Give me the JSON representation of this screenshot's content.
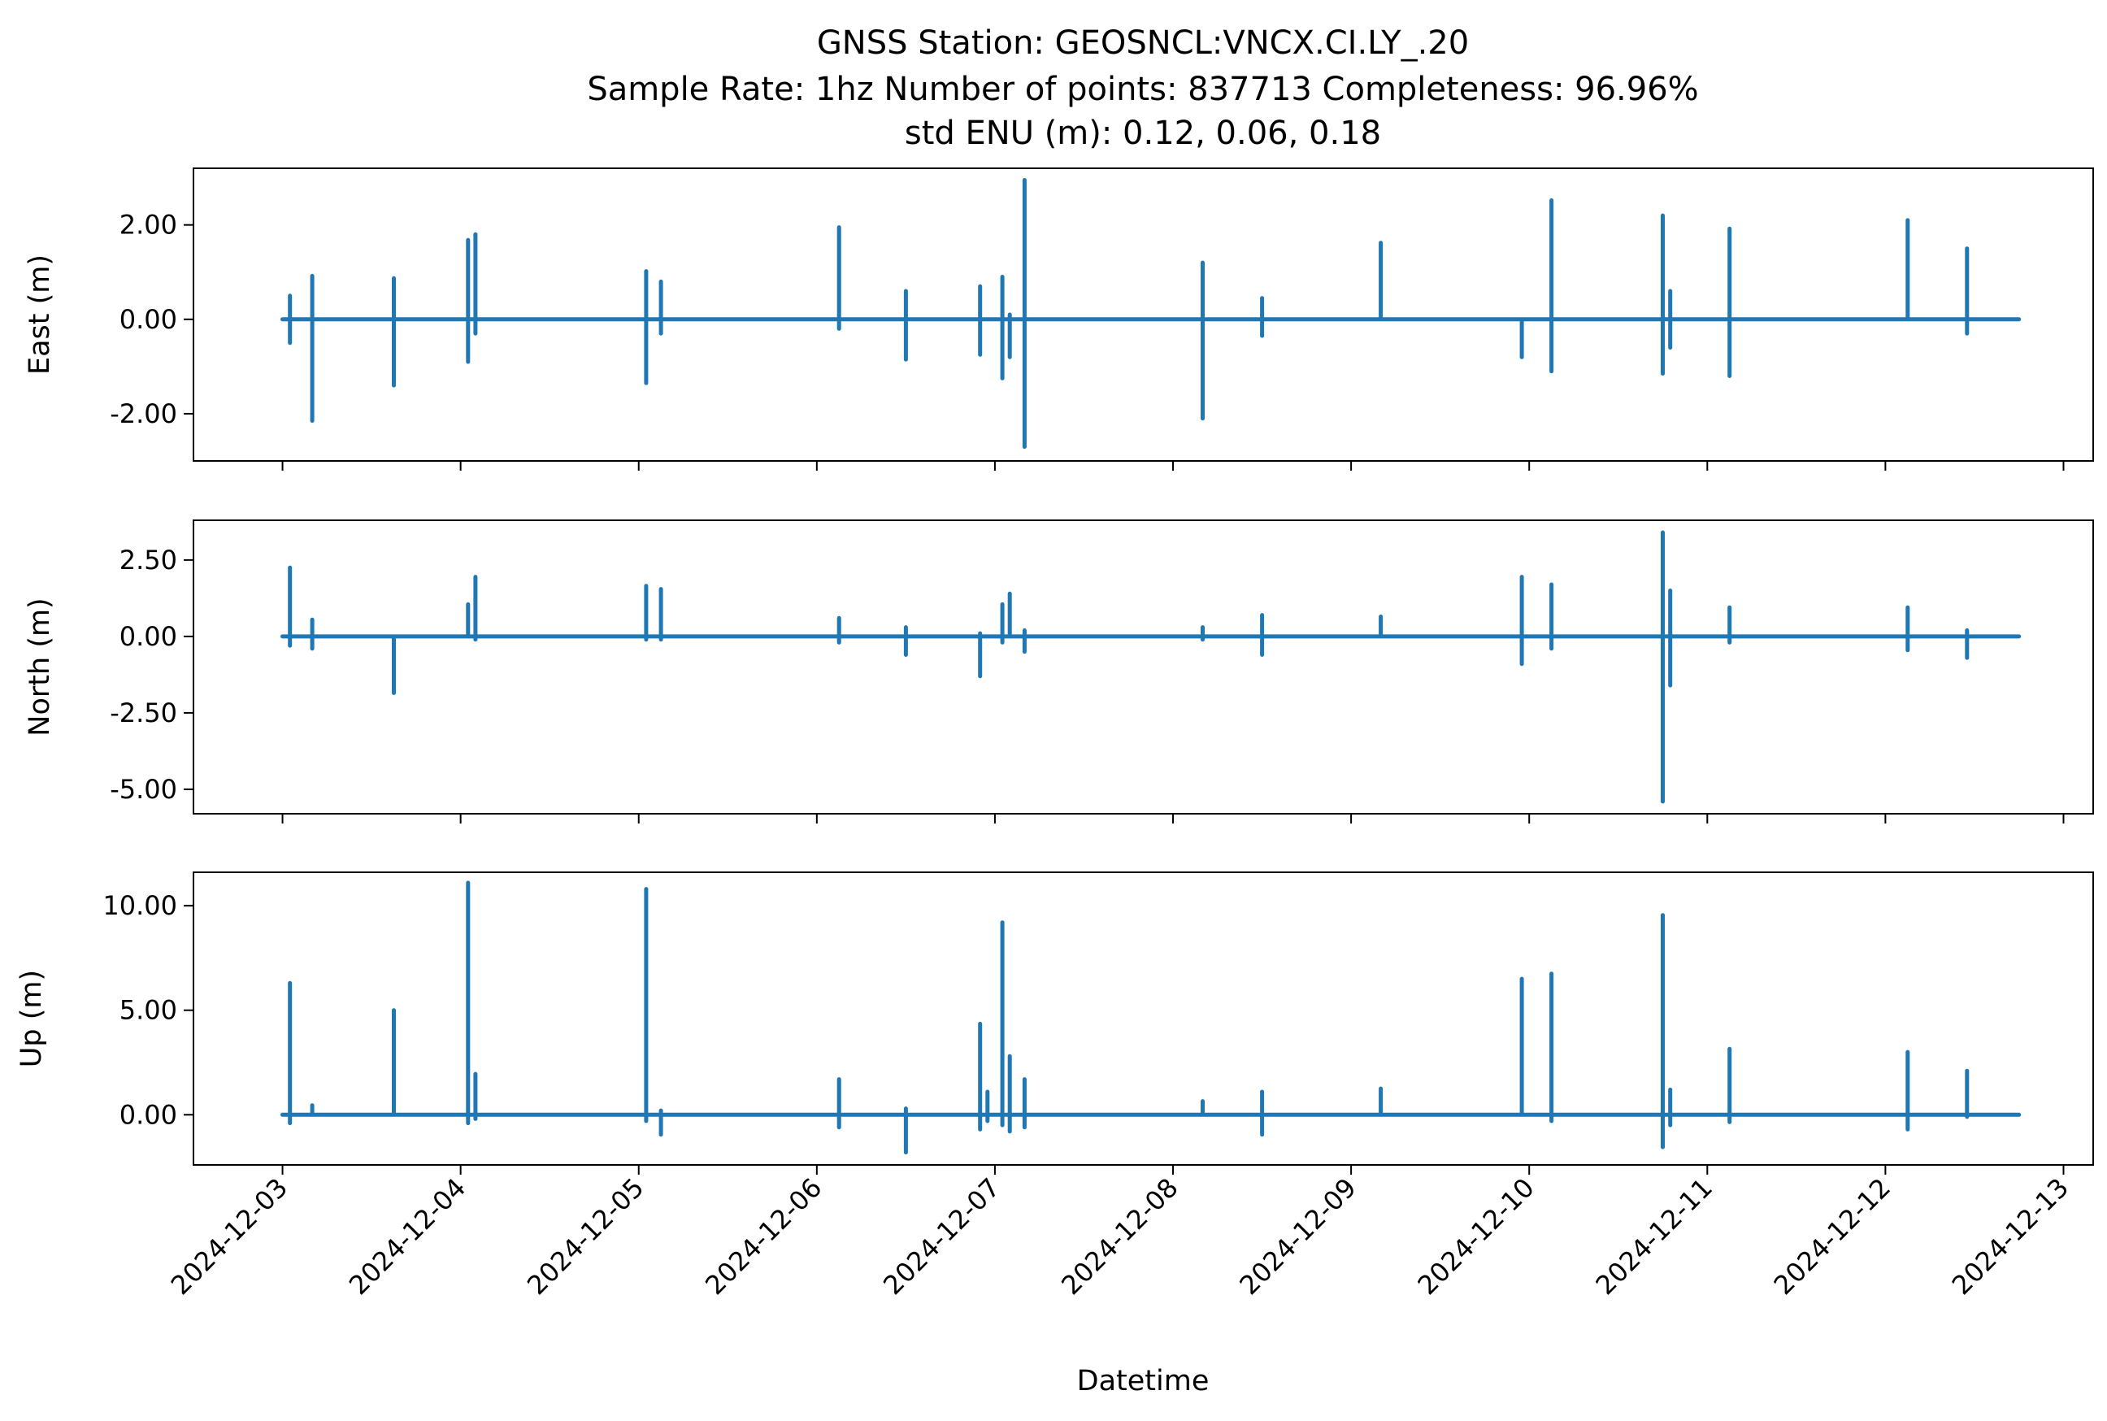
{
  "chart_data": {
    "type": "line",
    "title_lines": [
      "GNSS Station: GEOSNCL:VNCX.CI.LY_.20",
      "Sample Rate: 1hz   Number of points: 837713    Completeness:  96.96%",
      "std ENU (m):  0.12, 0.06, 0.18"
    ],
    "xlabel": "Datetime",
    "x_ticks": [
      "2024-12-03",
      "2024-12-04",
      "2024-12-05",
      "2024-12-06",
      "2024-12-07",
      "2024-12-08",
      "2024-12-09",
      "2024-12-10",
      "2024-12-11",
      "2024-12-12",
      "2024-12-13"
    ],
    "x_range": [
      "2024-12-02 12:00",
      "2024-12-13 04:00"
    ],
    "color": "#1f77b4",
    "panels": [
      {
        "ylabel": "East (m)",
        "ylim": [
          -3.0,
          3.2
        ],
        "y_ticks": [
          2.0,
          0.0,
          -2.0
        ],
        "y_tick_labels": [
          "2.00",
          "0.00",
          "-2.00"
        ],
        "spikes": [
          {
            "t": "2024-12-03 01:00",
            "lo": -0.5,
            "hi": 0.5
          },
          {
            "t": "2024-12-03 04:00",
            "lo": -2.15,
            "hi": 0.92
          },
          {
            "t": "2024-12-03 15:00",
            "lo": -1.4,
            "hi": 0.87
          },
          {
            "t": "2024-12-04 01:00",
            "lo": -0.9,
            "hi": 1.68
          },
          {
            "t": "2024-12-04 02:00",
            "lo": -0.3,
            "hi": 1.8
          },
          {
            "t": "2024-12-05 01:00",
            "lo": -1.35,
            "hi": 1.02
          },
          {
            "t": "2024-12-05 03:00",
            "lo": -0.3,
            "hi": 0.8
          },
          {
            "t": "2024-12-06 03:00",
            "lo": -0.2,
            "hi": 1.95
          },
          {
            "t": "2024-12-06 12:00",
            "lo": -0.85,
            "hi": 0.6
          },
          {
            "t": "2024-12-06 22:00",
            "lo": -0.75,
            "hi": 0.7
          },
          {
            "t": "2024-12-07 01:00",
            "lo": -1.25,
            "hi": 0.9
          },
          {
            "t": "2024-12-07 02:00",
            "lo": -0.8,
            "hi": 0.1
          },
          {
            "t": "2024-12-07 04:00",
            "lo": -2.7,
            "hi": 2.95
          },
          {
            "t": "2024-12-08 04:00",
            "lo": -2.1,
            "hi": 1.2
          },
          {
            "t": "2024-12-08 12:00",
            "lo": -0.35,
            "hi": 0.45
          },
          {
            "t": "2024-12-09 04:00",
            "lo": 0.0,
            "hi": 1.62
          },
          {
            "t": "2024-12-09 23:00",
            "lo": -0.8,
            "hi": 0.0
          },
          {
            "t": "2024-12-10 03:00",
            "lo": -1.1,
            "hi": 2.52
          },
          {
            "t": "2024-12-10 18:00",
            "lo": -1.15,
            "hi": 2.2
          },
          {
            "t": "2024-12-10 19:00",
            "lo": -0.6,
            "hi": 0.6
          },
          {
            "t": "2024-12-11 03:00",
            "lo": -1.2,
            "hi": 1.92
          },
          {
            "t": "2024-12-12 03:00",
            "lo": 0.0,
            "hi": 2.1
          },
          {
            "t": "2024-12-12 11:00",
            "lo": -0.3,
            "hi": 1.5
          }
        ]
      },
      {
        "ylabel": "North (m)",
        "ylim": [
          -5.8,
          3.8
        ],
        "y_ticks": [
          2.5,
          0.0,
          -2.5,
          -5.0
        ],
        "y_tick_labels": [
          "2.50",
          "0.00",
          "-2.50",
          "-5.00"
        ],
        "spikes": [
          {
            "t": "2024-12-03 01:00",
            "lo": -0.3,
            "hi": 2.25
          },
          {
            "t": "2024-12-03 04:00",
            "lo": -0.4,
            "hi": 0.55
          },
          {
            "t": "2024-12-03 15:00",
            "lo": -1.85,
            "hi": 0.0
          },
          {
            "t": "2024-12-04 01:00",
            "lo": 0.0,
            "hi": 1.05
          },
          {
            "t": "2024-12-04 02:00",
            "lo": -0.1,
            "hi": 1.95
          },
          {
            "t": "2024-12-05 01:00",
            "lo": -0.1,
            "hi": 1.65
          },
          {
            "t": "2024-12-05 03:00",
            "lo": -0.1,
            "hi": 1.55
          },
          {
            "t": "2024-12-06 03:00",
            "lo": -0.2,
            "hi": 0.6
          },
          {
            "t": "2024-12-06 12:00",
            "lo": -0.6,
            "hi": 0.3
          },
          {
            "t": "2024-12-06 22:00",
            "lo": -1.3,
            "hi": 0.1
          },
          {
            "t": "2024-12-07 01:00",
            "lo": -0.2,
            "hi": 1.05
          },
          {
            "t": "2024-12-07 02:00",
            "lo": 0.0,
            "hi": 1.4
          },
          {
            "t": "2024-12-07 04:00",
            "lo": -0.5,
            "hi": 0.2
          },
          {
            "t": "2024-12-08 04:00",
            "lo": -0.1,
            "hi": 0.3
          },
          {
            "t": "2024-12-08 12:00",
            "lo": -0.6,
            "hi": 0.7
          },
          {
            "t": "2024-12-09 04:00",
            "lo": 0.0,
            "hi": 0.65
          },
          {
            "t": "2024-12-09 23:00",
            "lo": -0.9,
            "hi": 1.95
          },
          {
            "t": "2024-12-10 03:00",
            "lo": -0.4,
            "hi": 1.7
          },
          {
            "t": "2024-12-10 18:00",
            "lo": -5.4,
            "hi": 3.4
          },
          {
            "t": "2024-12-10 19:00",
            "lo": -1.6,
            "hi": 1.5
          },
          {
            "t": "2024-12-11 03:00",
            "lo": -0.2,
            "hi": 0.95
          },
          {
            "t": "2024-12-12 03:00",
            "lo": -0.45,
            "hi": 0.95
          },
          {
            "t": "2024-12-12 11:00",
            "lo": -0.7,
            "hi": 0.2
          }
        ]
      },
      {
        "ylabel": "Up (m)",
        "ylim": [
          -2.4,
          11.6
        ],
        "y_ticks": [
          10.0,
          5.0,
          0.0
        ],
        "y_tick_labels": [
          "10.00",
          "5.00",
          "0.00"
        ],
        "spikes": [
          {
            "t": "2024-12-03 01:00",
            "lo": -0.4,
            "hi": 6.3
          },
          {
            "t": "2024-12-03 04:00",
            "lo": 0.0,
            "hi": 0.45
          },
          {
            "t": "2024-12-03 15:00",
            "lo": 0.0,
            "hi": 5.0
          },
          {
            "t": "2024-12-04 01:00",
            "lo": -0.4,
            "hi": 11.1
          },
          {
            "t": "2024-12-04 02:00",
            "lo": -0.2,
            "hi": 1.95
          },
          {
            "t": "2024-12-05 01:00",
            "lo": -0.3,
            "hi": 10.8
          },
          {
            "t": "2024-12-05 03:00",
            "lo": -0.95,
            "hi": 0.2
          },
          {
            "t": "2024-12-06 03:00",
            "lo": -0.6,
            "hi": 1.7
          },
          {
            "t": "2024-12-06 12:00",
            "lo": -1.8,
            "hi": 0.3
          },
          {
            "t": "2024-12-06 22:00",
            "lo": -0.7,
            "hi": 4.35
          },
          {
            "t": "2024-12-06 23:00",
            "lo": -0.3,
            "hi": 1.1
          },
          {
            "t": "2024-12-07 01:00",
            "lo": -0.5,
            "hi": 9.2
          },
          {
            "t": "2024-12-07 02:00",
            "lo": -0.8,
            "hi": 2.8
          },
          {
            "t": "2024-12-07 04:00",
            "lo": -0.6,
            "hi": 1.7
          },
          {
            "t": "2024-12-08 04:00",
            "lo": 0.0,
            "hi": 0.65
          },
          {
            "t": "2024-12-08 12:00",
            "lo": -0.95,
            "hi": 1.1
          },
          {
            "t": "2024-12-09 04:00",
            "lo": 0.0,
            "hi": 1.25
          },
          {
            "t": "2024-12-09 23:00",
            "lo": 0.0,
            "hi": 6.5
          },
          {
            "t": "2024-12-10 03:00",
            "lo": -0.3,
            "hi": 6.75
          },
          {
            "t": "2024-12-10 18:00",
            "lo": -1.55,
            "hi": 9.55
          },
          {
            "t": "2024-12-10 19:00",
            "lo": -0.5,
            "hi": 1.2
          },
          {
            "t": "2024-12-11 03:00",
            "lo": -0.35,
            "hi": 3.15
          },
          {
            "t": "2024-12-12 03:00",
            "lo": -0.7,
            "hi": 3.0
          },
          {
            "t": "2024-12-12 11:00",
            "lo": -0.1,
            "hi": 2.1
          }
        ]
      }
    ]
  }
}
